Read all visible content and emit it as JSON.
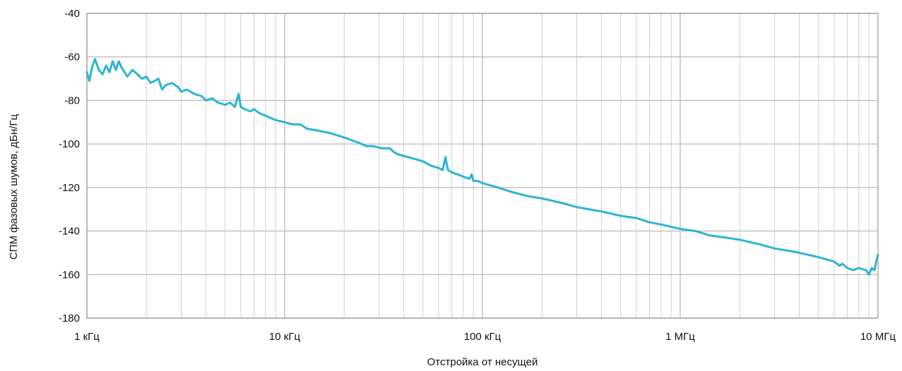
{
  "chart_data": {
    "type": "line",
    "title": "",
    "xlabel": "Отстройка от несущей",
    "ylabel": "СПМ фазовых шумов, дБн/Гц",
    "x_scale": "log",
    "x_unit": "Hz",
    "xlim": [
      1000,
      10000000
    ],
    "ylim": [
      -180,
      -40
    ],
    "grid": true,
    "x_ticks": [
      {
        "value": 1000,
        "label": "1 кГц"
      },
      {
        "value": 10000,
        "label": "10 кГц"
      },
      {
        "value": 100000,
        "label": "100 кГц"
      },
      {
        "value": 1000000,
        "label": "1 МГц"
      },
      {
        "value": 10000000,
        "label": "10 МГц"
      }
    ],
    "y_ticks": [
      {
        "value": -40,
        "label": "-40"
      },
      {
        "value": -60,
        "label": "-60"
      },
      {
        "value": -80,
        "label": "-80"
      },
      {
        "value": -100,
        "label": "-100"
      },
      {
        "value": -120,
        "label": "-120"
      },
      {
        "value": -140,
        "label": "-140"
      },
      {
        "value": -160,
        "label": "-160"
      },
      {
        "value": -180,
        "label": "-180"
      }
    ],
    "series": [
      {
        "color": "#2bb5cf",
        "points": [
          [
            1000,
            -67
          ],
          [
            1030,
            -71
          ],
          [
            1060,
            -65
          ],
          [
            1100,
            -61
          ],
          [
            1150,
            -66
          ],
          [
            1200,
            -68
          ],
          [
            1250,
            -64
          ],
          [
            1300,
            -67
          ],
          [
            1350,
            -62
          ],
          [
            1400,
            -66
          ],
          [
            1450,
            -62
          ],
          [
            1500,
            -65
          ],
          [
            1550,
            -67
          ],
          [
            1600,
            -69
          ],
          [
            1700,
            -66
          ],
          [
            1800,
            -68
          ],
          [
            1900,
            -70
          ],
          [
            2000,
            -69
          ],
          [
            2100,
            -72
          ],
          [
            2200,
            -71
          ],
          [
            2300,
            -70
          ],
          [
            2400,
            -75
          ],
          [
            2500,
            -73
          ],
          [
            2700,
            -72
          ],
          [
            2900,
            -74
          ],
          [
            3000,
            -76
          ],
          [
            3200,
            -75
          ],
          [
            3500,
            -77
          ],
          [
            3800,
            -78
          ],
          [
            4000,
            -80
          ],
          [
            4300,
            -79
          ],
          [
            4600,
            -81
          ],
          [
            5000,
            -82
          ],
          [
            5300,
            -81
          ],
          [
            5600,
            -83
          ],
          [
            5850,
            -77
          ],
          [
            6000,
            -83
          ],
          [
            6300,
            -84
          ],
          [
            6700,
            -85
          ],
          [
            7000,
            -84
          ],
          [
            7500,
            -86
          ],
          [
            8000,
            -87
          ],
          [
            9000,
            -89
          ],
          [
            10000,
            -90
          ],
          [
            11000,
            -91
          ],
          [
            12000,
            -91
          ],
          [
            13000,
            -93
          ],
          [
            15000,
            -94
          ],
          [
            17000,
            -95
          ],
          [
            20000,
            -97
          ],
          [
            23000,
            -99
          ],
          [
            26000,
            -101
          ],
          [
            28000,
            -101
          ],
          [
            31000,
            -102
          ],
          [
            34000,
            -102
          ],
          [
            36000,
            -104
          ],
          [
            38000,
            -105
          ],
          [
            42000,
            -106
          ],
          [
            46000,
            -107
          ],
          [
            50000,
            -108
          ],
          [
            55000,
            -110
          ],
          [
            60000,
            -111
          ],
          [
            63000,
            -112
          ],
          [
            65000,
            -106
          ],
          [
            67000,
            -112
          ],
          [
            70000,
            -113
          ],
          [
            75000,
            -114
          ],
          [
            80000,
            -115
          ],
          [
            86000,
            -116
          ],
          [
            88000,
            -114
          ],
          [
            90000,
            -117
          ],
          [
            95000,
            -117
          ],
          [
            100000,
            -118
          ],
          [
            110000,
            -119
          ],
          [
            120000,
            -120
          ],
          [
            140000,
            -122
          ],
          [
            170000,
            -124
          ],
          [
            200000,
            -125
          ],
          [
            250000,
            -127
          ],
          [
            300000,
            -129
          ],
          [
            400000,
            -131
          ],
          [
            500000,
            -133
          ],
          [
            600000,
            -134
          ],
          [
            700000,
            -136
          ],
          [
            800000,
            -137
          ],
          [
            1000000,
            -139
          ],
          [
            1200000,
            -140
          ],
          [
            1400000,
            -142
          ],
          [
            1700000,
            -143
          ],
          [
            2000000,
            -144
          ],
          [
            2500000,
            -146
          ],
          [
            3000000,
            -148
          ],
          [
            3500000,
            -149
          ],
          [
            4000000,
            -150
          ],
          [
            5000000,
            -152
          ],
          [
            6000000,
            -154
          ],
          [
            6400000,
            -156
          ],
          [
            6600000,
            -155
          ],
          [
            7000000,
            -157
          ],
          [
            7500000,
            -158
          ],
          [
            8000000,
            -157
          ],
          [
            8700000,
            -158
          ],
          [
            9000000,
            -160
          ],
          [
            9300000,
            -157
          ],
          [
            9600000,
            -158
          ],
          [
            9800000,
            -154
          ],
          [
            10000000,
            -151
          ]
        ]
      }
    ]
  }
}
